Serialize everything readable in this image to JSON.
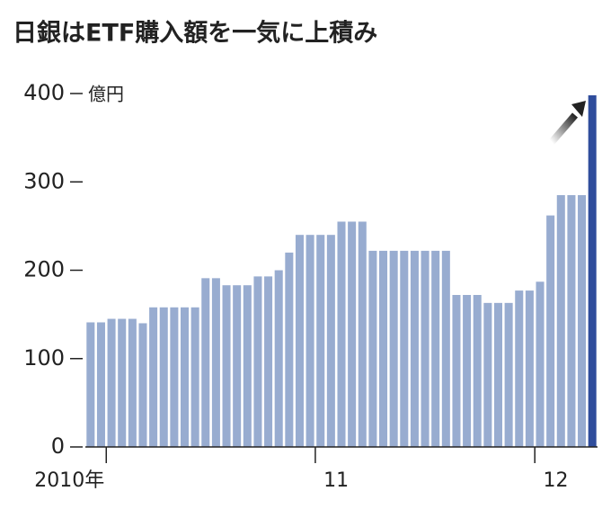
{
  "chart_data": {
    "type": "bar",
    "title": "日銀はETF購入額を一気に上積み",
    "y_unit": "億円",
    "categories": [
      null,
      null,
      "2010年",
      null,
      null,
      null,
      null,
      null,
      null,
      null,
      null,
      null,
      null,
      null,
      null,
      null,
      null,
      null,
      null,
      null,
      null,
      null,
      "11",
      null,
      null,
      null,
      null,
      null,
      null,
      null,
      null,
      null,
      null,
      null,
      null,
      null,
      null,
      null,
      null,
      null,
      null,
      null,
      null,
      "12",
      null,
      null,
      null,
      null,
      null
    ],
    "values": [
      141,
      141,
      145,
      145,
      145,
      140,
      158,
      158,
      158,
      158,
      158,
      191,
      191,
      183,
      183,
      183,
      193,
      193,
      200,
      220,
      240,
      240,
      240,
      240,
      255,
      255,
      255,
      222,
      222,
      222,
      222,
      222,
      222,
      222,
      222,
      172,
      172,
      172,
      163,
      163,
      163,
      177,
      177,
      187,
      262,
      285,
      285,
      285,
      398
    ],
    "colors": [
      "#98acd0",
      "#98acd0",
      "#98acd0",
      "#98acd0",
      "#98acd0",
      "#98acd0",
      "#98acd0",
      "#98acd0",
      "#98acd0",
      "#98acd0",
      "#98acd0",
      "#98acd0",
      "#98acd0",
      "#98acd0",
      "#98acd0",
      "#98acd0",
      "#98acd0",
      "#98acd0",
      "#98acd0",
      "#98acd0",
      "#98acd0",
      "#98acd0",
      "#98acd0",
      "#98acd0",
      "#98acd0",
      "#98acd0",
      "#98acd0",
      "#98acd0",
      "#98acd0",
      "#98acd0",
      "#98acd0",
      "#98acd0",
      "#98acd0",
      "#98acd0",
      "#98acd0",
      "#98acd0",
      "#98acd0",
      "#98acd0",
      "#98acd0",
      "#98acd0",
      "#98acd0",
      "#98acd0",
      "#98acd0",
      "#98acd0",
      "#98acd0",
      "#98acd0",
      "#98acd0",
      "#98acd0",
      "#2f4d9c"
    ],
    "ylim": [
      0,
      400
    ],
    "yticks": [
      0,
      100,
      200,
      300,
      400
    ],
    "grid": false
  }
}
